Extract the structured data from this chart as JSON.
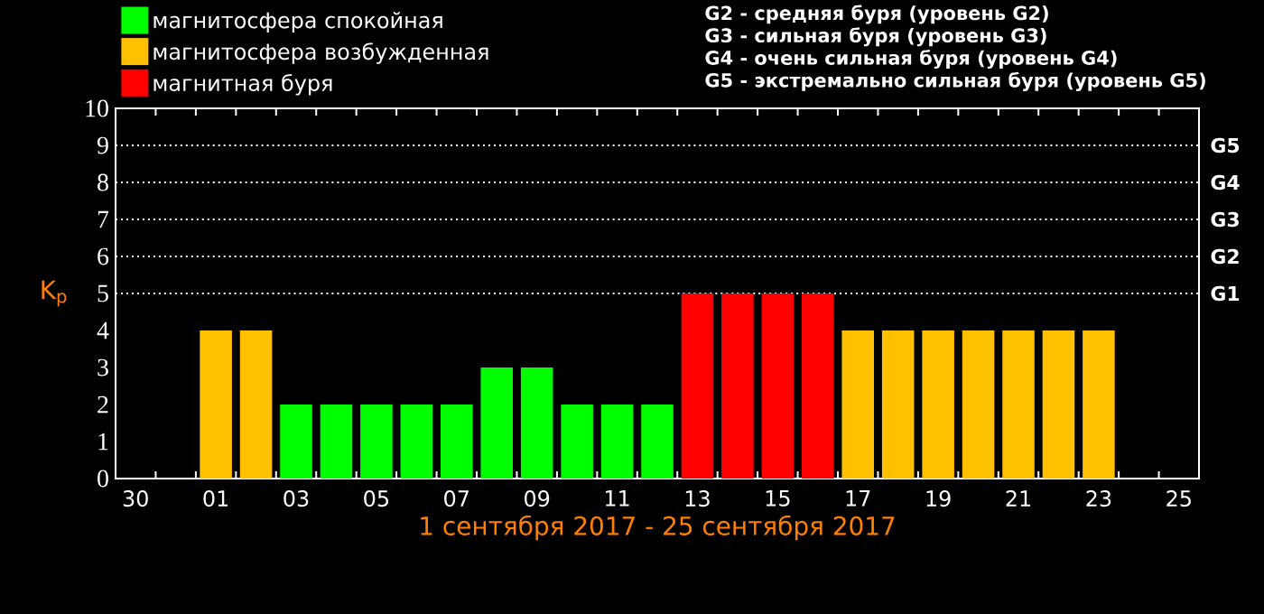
{
  "chart_data": {
    "type": "bar",
    "xlabel": "1 сентября 2017 - 25 сентября 2017",
    "ylabel": "K$_{p}$",
    "x": [
      "2017-09-01",
      "2017-09-02",
      "2017-09-03",
      "2017-09-04",
      "2017-09-05",
      "2017-09-06",
      "2017-09-07",
      "2017-09-08",
      "2017-09-09",
      "2017-09-10",
      "2017-09-11",
      "2017-09-12",
      "2017-09-13",
      "2017-09-14",
      "2017-09-15",
      "2017-09-16",
      "2017-09-17",
      "2017-09-18",
      "2017-09-19",
      "2017-09-20",
      "2017-09-21",
      "2017-09-22",
      "2017-09-23"
    ],
    "series": [
      {
        "name": "магнитосфера спокойная",
        "color": "#00ff00",
        "values": [
          null,
          null,
          2,
          2,
          2,
          2,
          2,
          3,
          3,
          2,
          2,
          2,
          null,
          null,
          null,
          null,
          null,
          null,
          null,
          null,
          null,
          null,
          null
        ]
      },
      {
        "name": "магнитосфера возбужденная",
        "color": "#ffc000",
        "values": [
          4,
          4,
          null,
          null,
          null,
          null,
          null,
          null,
          null,
          null,
          null,
          null,
          null,
          null,
          null,
          null,
          4,
          4,
          4,
          4,
          4,
          4,
          4
        ]
      },
      {
        "name": "магнитная буря",
        "color": "#ff0000",
        "values": [
          null,
          null,
          null,
          null,
          null,
          null,
          null,
          null,
          null,
          null,
          null,
          null,
          5,
          5,
          5,
          5,
          null,
          null,
          null,
          null,
          null,
          null,
          null
        ]
      }
    ],
    "xlim": [
      "2017-08-29T12:00",
      "2017-09-25T12:00"
    ],
    "xticks": [
      {
        "value": "2017-08-30",
        "label": "30"
      },
      {
        "value": "2017-09-01",
        "label": "01"
      },
      {
        "value": "2017-09-03",
        "label": "03"
      },
      {
        "value": "2017-09-05",
        "label": "05"
      },
      {
        "value": "2017-09-07",
        "label": "07"
      },
      {
        "value": "2017-09-09",
        "label": "09"
      },
      {
        "value": "2017-09-11",
        "label": "11"
      },
      {
        "value": "2017-09-13",
        "label": "13"
      },
      {
        "value": "2017-09-15",
        "label": "15"
      },
      {
        "value": "2017-09-17",
        "label": "17"
      },
      {
        "value": "2017-09-19",
        "label": "19"
      },
      {
        "value": "2017-09-21",
        "label": "21"
      },
      {
        "value": "2017-09-23",
        "label": "23"
      },
      {
        "value": "2017-09-25",
        "label": "25"
      },
      {
        "value": "2017-08-30T12:00",
        "label": null
      },
      {
        "value": "2017-08-31T12:00",
        "label": null
      },
      {
        "value": "2017-09-01T12:00",
        "label": null
      },
      {
        "value": "2017-09-02T12:00",
        "label": null
      },
      {
        "value": "2017-09-03T12:00",
        "label": null
      },
      {
        "value": "2017-09-04T12:00",
        "label": null
      },
      {
        "value": "2017-09-05T12:00",
        "label": null
      },
      {
        "value": "2017-09-06T12:00",
        "label": null
      },
      {
        "value": "2017-09-07T12:00",
        "label": null
      },
      {
        "value": "2017-09-08T12:00",
        "label": null
      },
      {
        "value": "2017-09-09T12:00",
        "label": null
      },
      {
        "value": "2017-09-10T12:00",
        "label": null
      },
      {
        "value": "2017-09-11T12:00",
        "label": null
      },
      {
        "value": "2017-09-12T12:00",
        "label": null
      },
      {
        "value": "2017-09-13T12:00",
        "label": null
      },
      {
        "value": "2017-09-14T12:00",
        "label": null
      },
      {
        "value": "2017-09-15T12:00",
        "label": null
      },
      {
        "value": "2017-09-16T12:00",
        "label": null
      },
      {
        "value": "2017-09-17T12:00",
        "label": null
      },
      {
        "value": "2017-09-18T12:00",
        "label": null
      },
      {
        "value": "2017-09-19T12:00",
        "label": null
      },
      {
        "value": "2017-09-20T12:00",
        "label": null
      },
      {
        "value": "2017-09-21T12:00",
        "label": null
      },
      {
        "value": "2017-09-22T12:00",
        "label": null
      },
      {
        "value": "2017-09-23T12:00",
        "label": null
      },
      {
        "value": "2017-09-24T12:00",
        "label": null
      }
    ],
    "ylim": [
      0,
      10
    ],
    "yticks": [
      0,
      1,
      2,
      3,
      4,
      5,
      6,
      7,
      8,
      9,
      10
    ],
    "ref_lines": [
      {
        "axis": "y",
        "value": 5,
        "label": "G1",
        "color": "#ffffff",
        "line_style": "dotted"
      },
      {
        "axis": "y",
        "value": 6,
        "label": "G2",
        "color": "#ffffff",
        "line_style": "dotted"
      },
      {
        "axis": "y",
        "value": 7,
        "label": "G3",
        "color": "#ffffff",
        "line_style": "dotted"
      },
      {
        "axis": "y",
        "value": 8,
        "label": "G4",
        "color": "#ffffff",
        "line_style": "dotted"
      },
      {
        "axis": "y",
        "value": 9,
        "label": "G5",
        "color": "#ffffff",
        "line_style": "dotted"
      }
    ],
    "annotations": [
      "G2 - средняя буря (уровень G2)",
      "G3 - сильная буря (уровень G3)",
      "G4 - очень сильная буря (уровень G4)",
      "G5 - экстремально сильная буря (уровень G5)"
    ],
    "legend": "top left"
  }
}
